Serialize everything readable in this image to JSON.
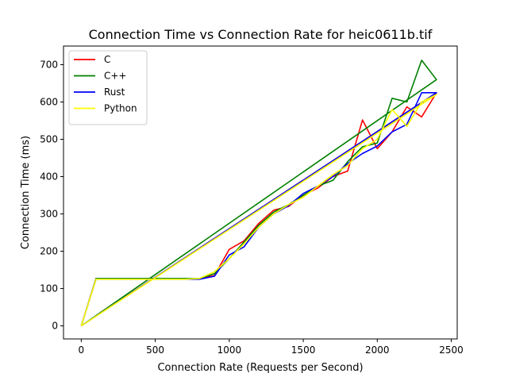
{
  "chart_data": {
    "type": "line",
    "title": "Connection Time vs Connection Rate for heic0611b.tif",
    "xlabel": "Connection Rate (Requests per Second)",
    "ylabel": "Connection Time (ms)",
    "xlim": [
      -120,
      2540
    ],
    "ylim": [
      -35,
      750
    ],
    "x_ticks": [
      0,
      500,
      1000,
      1500,
      2000,
      2500
    ],
    "y_ticks": [
      0,
      100,
      200,
      300,
      400,
      500,
      600,
      700
    ],
    "grid": false,
    "legend_position": "top-left",
    "series": [
      {
        "name": "C",
        "color": "#ff0000",
        "x": [
          0,
          100,
          200,
          300,
          400,
          500,
          600,
          700,
          800,
          900,
          1000,
          1100,
          1200,
          1300,
          1400,
          1500,
          1600,
          1700,
          1800,
          1900,
          2000,
          2100,
          2200,
          2300,
          2400,
          0
        ],
        "y": [
          0,
          127,
          127,
          127,
          127,
          127,
          127,
          127,
          127,
          135,
          205,
          228,
          275,
          310,
          320,
          350,
          370,
          400,
          415,
          552,
          475,
          520,
          587,
          560,
          625,
          0
        ]
      },
      {
        "name": "C++",
        "color": "#008000",
        "x": [
          0,
          100,
          200,
          300,
          400,
          500,
          600,
          700,
          800,
          900,
          1000,
          1100,
          1200,
          1300,
          1400,
          1500,
          1600,
          1700,
          1800,
          1900,
          2000,
          2100,
          2200,
          2300,
          2400,
          0
        ],
        "y": [
          0,
          127,
          127,
          127,
          127,
          127,
          127,
          127,
          127,
          140,
          180,
          225,
          270,
          305,
          325,
          350,
          375,
          390,
          440,
          480,
          490,
          610,
          600,
          712,
          660,
          0
        ]
      },
      {
        "name": "Rust",
        "color": "#0000ff",
        "x": [
          0,
          100,
          200,
          300,
          400,
          500,
          600,
          700,
          800,
          900,
          1000,
          1100,
          1200,
          1300,
          1400,
          1500,
          1600,
          1700,
          1800,
          1900,
          2000,
          2100,
          2200,
          2300,
          2400,
          0
        ],
        "y": [
          0,
          125,
          125,
          125,
          125,
          125,
          125,
          125,
          125,
          133,
          190,
          212,
          265,
          300,
          322,
          355,
          375,
          400,
          435,
          462,
          482,
          520,
          540,
          625,
          625,
          0
        ]
      },
      {
        "name": "Python",
        "color": "#ffff00",
        "x": [
          0,
          100,
          200,
          300,
          400,
          500,
          600,
          700,
          800,
          900,
          1000,
          1100,
          1200,
          1300,
          1400,
          1500,
          1600,
          1700,
          1800,
          1900,
          2000,
          2100,
          2200,
          2300,
          2400,
          0
        ],
        "y": [
          0,
          125,
          125,
          125,
          125,
          125,
          125,
          125,
          127,
          145,
          180,
          220,
          265,
          300,
          325,
          345,
          375,
          405,
          430,
          475,
          500,
          580,
          535,
          600,
          620,
          0
        ]
      }
    ]
  }
}
